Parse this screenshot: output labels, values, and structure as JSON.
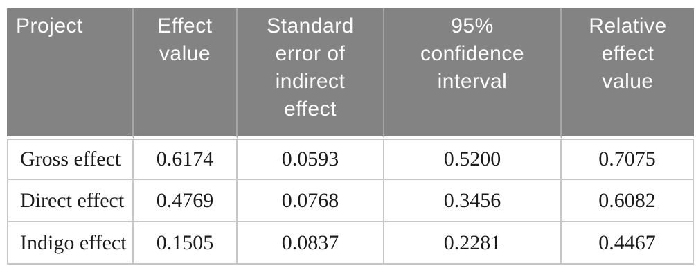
{
  "table": {
    "headers": [
      "Project",
      "Effect\nvalue",
      "Standard\nerror of\nindirect\neffect",
      "95%\nconfidence\ninterval",
      "Relative\neffect\nvalue"
    ],
    "rows": [
      [
        "Gross effect",
        "0.6174",
        "0.0593",
        "0.5200",
        "0.7075"
      ],
      [
        "Direct effect",
        "0.4769",
        "0.0768",
        "0.3456",
        "0.6082"
      ],
      [
        "Indigo effect",
        "0.1505",
        "0.0837",
        "0.2281",
        "0.4467"
      ]
    ]
  },
  "chart_data": {
    "type": "table",
    "columns": [
      "Project",
      "Effect value",
      "Standard error of indirect effect",
      "95% confidence interval",
      "Relative effect value"
    ],
    "rows": [
      [
        "Gross effect",
        0.6174,
        0.0593,
        0.52,
        0.7075
      ],
      [
        "Direct effect",
        0.4769,
        0.0768,
        0.3456,
        0.6082
      ],
      [
        "Indigo effect",
        0.1505,
        0.0837,
        0.2281,
        0.4467
      ]
    ]
  },
  "colors": {
    "header_bg": "#838383",
    "header_text": "#ffffff",
    "header_divider": "#a6a6a6",
    "body_border": "#c6c6c6",
    "body_text": "#1b1b1b"
  }
}
